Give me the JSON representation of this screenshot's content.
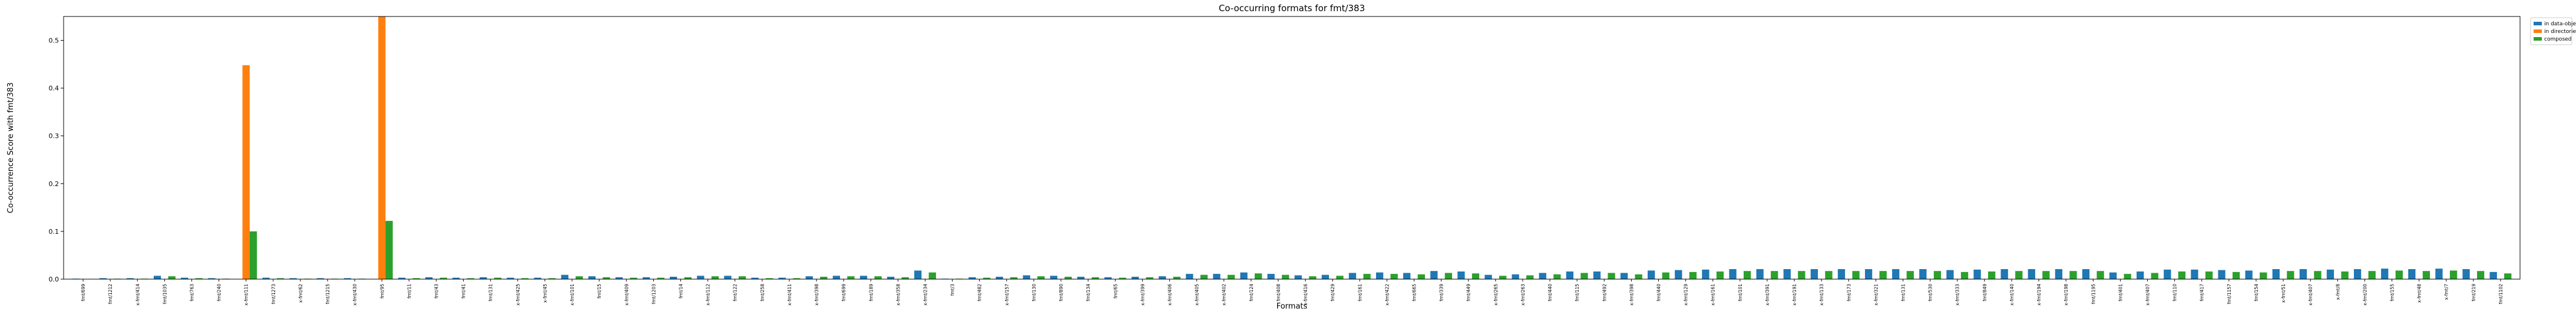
{
  "chart_data": {
    "type": "bar",
    "title": "Co-occurring formats for fmt/383",
    "xlabel": "Formats",
    "ylabel": "Co-occurrence Score with fmt/383",
    "ylim": [
      0,
      0.55
    ],
    "yticks": [
      0.0,
      0.1,
      0.2,
      0.3,
      0.4,
      0.5
    ],
    "ytick_labels": [
      "0.0",
      "0.1",
      "0.2",
      "0.3",
      "0.4",
      "0.5"
    ],
    "legend_position": "outside-top-right",
    "categories": [
      "fmt/699",
      "fmt/1212",
      "x-fmt/414",
      "fmt/1035",
      "fmt/763",
      "fmt/240",
      "x-fmt/111",
      "fmt/1273",
      "x-fmt/62",
      "fmt/1215",
      "x-fmt/430",
      "fmt/95",
      "fmt/11",
      "fmt/43",
      "fmt/41",
      "fmt/131",
      "x-fmt/425",
      "x-fmt/45",
      "x-fmt/101",
      "fmt/15",
      "x-fmt/409",
      "fmt/1203",
      "fmt/14",
      "x-fmt/112",
      "fmt/122",
      "fmt/258",
      "x-fmt/411",
      "x-fmt/398",
      "fmt/699",
      "fmt/189",
      "x-fmt/358",
      "x-fmt/234",
      "fmt/3",
      "fmt/482",
      "x-fmt/157",
      "fmt/130",
      "fmt/890",
      "fmt/134",
      "fmt/65",
      "x-fmt/399",
      "x-fmt/406",
      "x-fmt/405",
      "x-fmt/402",
      "fmt/124",
      "fmt/408",
      "x-fmt/416",
      "fmt/429",
      "fmt/161",
      "x-fmt/422",
      "fmt/665",
      "fmt/339",
      "fmt/449",
      "x-fmt/265",
      "x-fmt/263",
      "fmt/440",
      "fmt/115",
      "fmt/492",
      "x-fmt/398",
      "fmt/440",
      "x-fmt/129",
      "x-fmt/161",
      "fmt/101",
      "x-fmt/391",
      "x-fmt/191",
      "x-fmt/133",
      "fmt/173",
      "x-fmt/321",
      "fmt/131",
      "fmt/530",
      "x-fmt/333",
      "fmt/849",
      "x-fmt/140",
      "x-fmt/194",
      "x-fmt/198",
      "fmt/1195",
      "fmt/401",
      "x-fmt/407",
      "fmt/110",
      "fmt/417",
      "fmt/1157",
      "fmt/154",
      "x-fmt/51",
      "x-fmt/407",
      "x-fmt/8",
      "x-fmt/200",
      "fmt/155",
      "x-fmt/48",
      "x-fmt/7",
      "fmt/219",
      "fmt/1102"
    ],
    "series": [
      {
        "name": "in data-objects",
        "color": "#1f77b4",
        "values": [
          0.001,
          0.002,
          0.002,
          0.007,
          0.003,
          0.002,
          0.0,
          0.003,
          0.002,
          0.002,
          0.002,
          0.0,
          0.003,
          0.004,
          0.003,
          0.004,
          0.003,
          0.003,
          0.009,
          0.006,
          0.004,
          0.004,
          0.005,
          0.007,
          0.007,
          0.003,
          0.003,
          0.006,
          0.007,
          0.007,
          0.005,
          0.018,
          0.001,
          0.004,
          0.005,
          0.008,
          0.007,
          0.005,
          0.004,
          0.005,
          0.006,
          0.011,
          0.011,
          0.014,
          0.011,
          0.008,
          0.009,
          0.013,
          0.014,
          0.013,
          0.017,
          0.016,
          0.009,
          0.01,
          0.013,
          0.016,
          0.016,
          0.013,
          0.018,
          0.019,
          0.02,
          0.021,
          0.021,
          0.021,
          0.021,
          0.021,
          0.021,
          0.021,
          0.021,
          0.019,
          0.02,
          0.021,
          0.021,
          0.021,
          0.021,
          0.014,
          0.016,
          0.02,
          0.02,
          0.019,
          0.018,
          0.021,
          0.021,
          0.02,
          0.021,
          0.022,
          0.021,
          0.022,
          0.021,
          0.015
        ]
      },
      {
        "name": "in directories",
        "color": "#ff7f0e",
        "values": [
          0.0,
          0.0,
          0.0,
          0.0,
          0.0,
          0.0,
          0.448,
          0.0,
          0.0,
          0.0,
          0.0,
          0.55,
          0.0,
          0.0,
          0.0,
          0.0,
          0.0,
          0.0,
          0.0,
          0.0,
          0.0,
          0.0,
          0.0,
          0.0,
          0.0,
          0.0,
          0.0,
          0.0,
          0.0,
          0.0,
          0.0,
          0.0,
          0.0,
          0.0,
          0.0,
          0.0,
          0.0,
          0.0,
          0.0,
          0.0,
          0.0,
          0.0,
          0.0,
          0.0,
          0.0,
          0.0,
          0.0,
          0.0,
          0.0,
          0.0,
          0.0,
          0.0,
          0.0,
          0.0,
          0.0,
          0.0,
          0.0,
          0.0,
          0.0,
          0.0,
          0.0,
          0.0,
          0.0,
          0.0,
          0.0,
          0.0,
          0.0,
          0.0,
          0.0,
          0.0,
          0.0,
          0.0,
          0.0,
          0.0,
          0.0,
          0.0,
          0.0,
          0.0,
          0.0,
          0.0,
          0.0,
          0.0,
          0.0,
          0.0,
          0.0,
          0.0,
          0.0,
          0.0,
          0.0,
          0.0
        ]
      },
      {
        "name": "composed",
        "color": "#2ca02c",
        "values": [
          0.0,
          0.001,
          0.001,
          0.006,
          0.002,
          0.001,
          0.1,
          0.002,
          0.001,
          0.001,
          0.001,
          0.122,
          0.002,
          0.003,
          0.002,
          0.003,
          0.002,
          0.002,
          0.006,
          0.004,
          0.003,
          0.003,
          0.004,
          0.006,
          0.006,
          0.002,
          0.002,
          0.005,
          0.006,
          0.006,
          0.004,
          0.014,
          0.001,
          0.003,
          0.004,
          0.006,
          0.005,
          0.004,
          0.003,
          0.004,
          0.005,
          0.009,
          0.009,
          0.012,
          0.009,
          0.006,
          0.007,
          0.011,
          0.011,
          0.01,
          0.013,
          0.012,
          0.007,
          0.008,
          0.01,
          0.013,
          0.013,
          0.01,
          0.014,
          0.015,
          0.016,
          0.017,
          0.017,
          0.017,
          0.017,
          0.017,
          0.017,
          0.017,
          0.017,
          0.015,
          0.016,
          0.017,
          0.017,
          0.017,
          0.017,
          0.011,
          0.013,
          0.016,
          0.016,
          0.015,
          0.014,
          0.017,
          0.017,
          0.016,
          0.017,
          0.018,
          0.017,
          0.018,
          0.017,
          0.012
        ]
      }
    ]
  }
}
